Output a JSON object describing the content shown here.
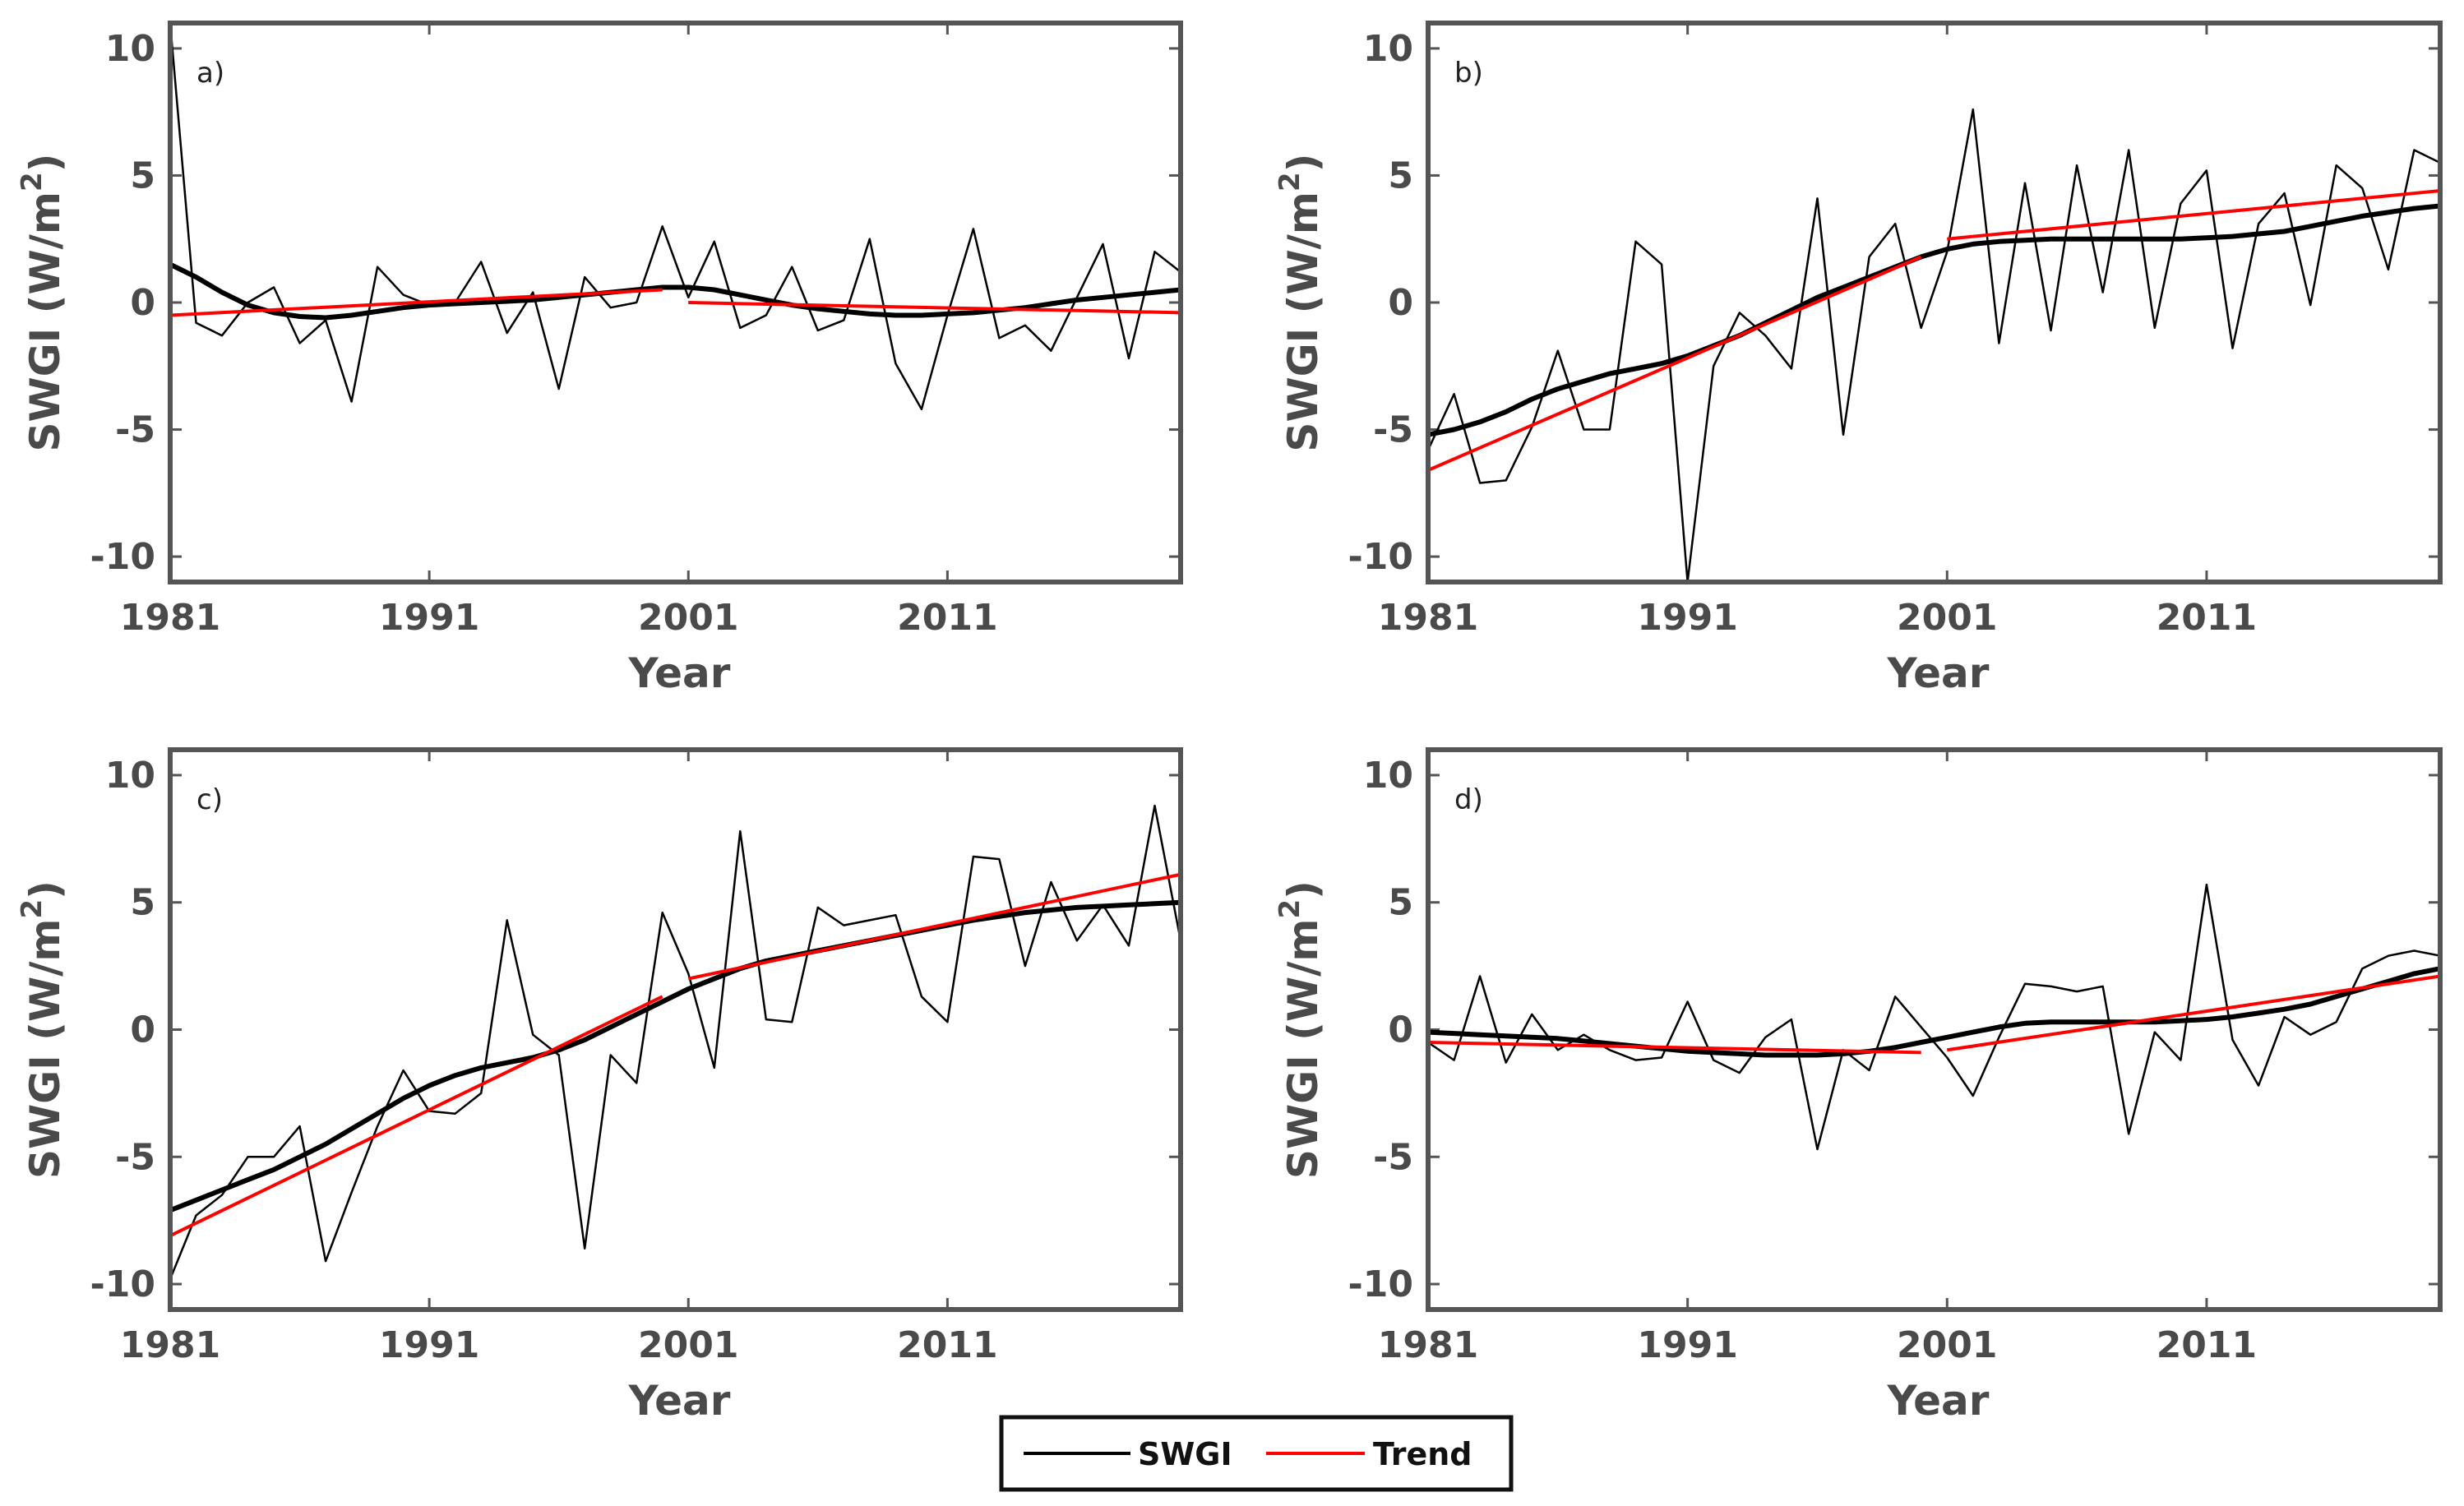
{
  "colors": {
    "swgi": "#000000",
    "trend": "#ff0000",
    "axis": "#4a4a4a",
    "frame": "#555555"
  },
  "legend": {
    "entries": [
      "SWGI",
      "Trend"
    ]
  },
  "chart_data": [
    {
      "type": "line",
      "panel_label": "a)",
      "xlabel": "Year",
      "ylabel": "SWGI (W/m",
      "ylabel_superscript": "2",
      "ylabel_close": ")",
      "xlim": [
        1981,
        2020
      ],
      "ylim": [
        -11,
        11
      ],
      "xticks": [
        "1981",
        "1991",
        "2001",
        "2011"
      ],
      "yticks": [
        "10",
        "5",
        "0",
        "-5",
        "-10"
      ],
      "x": [
        1981,
        1982,
        1983,
        1984,
        1985,
        1986,
        1987,
        1988,
        1989,
        1990,
        1991,
        1992,
        1993,
        1994,
        1995,
        1996,
        1997,
        1998,
        1999,
        2000,
        2001,
        2002,
        2003,
        2004,
        2005,
        2006,
        2007,
        2008,
        2009,
        2010,
        2011,
        2012,
        2013,
        2014,
        2015,
        2016,
        2017,
        2018,
        2019,
        2020
      ],
      "series": [
        {
          "name": "SWGI",
          "kind": "raw",
          "values": [
            11,
            -0.8,
            -1.3,
            0,
            0.6,
            -1.6,
            -0.7,
            -3.9,
            1.4,
            0.3,
            -0.1,
            0,
            1.6,
            -1.2,
            0.4,
            -3.4,
            1,
            -0.2,
            0,
            3,
            0.2,
            2.4,
            -1,
            -0.5,
            1.4,
            -1.1,
            -0.7,
            2.5,
            -2.4,
            -4.2,
            -0.5,
            2.9,
            -1.4,
            -0.9,
            -1.9,
            0.2,
            2.3,
            -2.2,
            2,
            1.2
          ]
        },
        {
          "name": "SWGI smoothed",
          "kind": "smooth",
          "values": [
            1.5,
            1,
            0.4,
            -0.1,
            -0.4,
            -0.55,
            -0.6,
            -0.5,
            -0.35,
            -0.2,
            -0.1,
            -0.05,
            0,
            0.05,
            0.1,
            0.2,
            0.3,
            0.4,
            0.5,
            0.6,
            0.6,
            0.5,
            0.3,
            0.1,
            -0.1,
            -0.25,
            -0.35,
            -0.45,
            -0.5,
            -0.5,
            -0.45,
            -0.4,
            -0.3,
            -0.2,
            -0.05,
            0.1,
            0.2,
            0.3,
            0.4,
            0.5
          ]
        },
        {
          "name": "Trend",
          "kind": "trend",
          "segments": [
            {
              "x": [
                1981,
                2000
              ],
              "y": [
                -0.5,
                0.5
              ]
            },
            {
              "x": [
                2001,
                2020
              ],
              "y": [
                0,
                -0.4
              ]
            }
          ]
        }
      ]
    },
    {
      "type": "line",
      "panel_label": "b)",
      "xlabel": "Year",
      "ylabel": "SWGI (W/m",
      "ylabel_superscript": "2",
      "ylabel_close": ")",
      "xlim": [
        1981,
        2020
      ],
      "ylim": [
        -11,
        11
      ],
      "xticks": [
        "1981",
        "1991",
        "2001",
        "2011"
      ],
      "yticks": [
        "10",
        "5",
        "0",
        "-5",
        "-10"
      ],
      "x": [
        1981,
        1982,
        1983,
        1984,
        1985,
        1986,
        1987,
        1988,
        1989,
        1990,
        1991,
        1992,
        1993,
        1994,
        1995,
        1996,
        1997,
        1998,
        1999,
        2000,
        2001,
        2002,
        2003,
        2004,
        2005,
        2006,
        2007,
        2008,
        2009,
        2010,
        2011,
        2012,
        2013,
        2014,
        2015,
        2016,
        2017,
        2018,
        2019,
        2020
      ],
      "series": [
        {
          "name": "SWGI",
          "kind": "raw",
          "values": [
            -5.8,
            -3.6,
            -7.1,
            -7,
            -4.9,
            -1.9,
            -5,
            -5,
            2.4,
            1.5,
            -11,
            -2.5,
            -0.4,
            -1.3,
            -2.6,
            4.1,
            -5.2,
            1.8,
            3.1,
            -1,
            2,
            7.6,
            -1.6,
            4.7,
            -1.1,
            5.4,
            0.4,
            6,
            -1,
            3.9,
            5.2,
            -1.8,
            3.1,
            4.3,
            -0.1,
            5.4,
            4.5,
            1.3,
            6,
            5.5
          ]
        },
        {
          "name": "SWGI smoothed",
          "kind": "smooth",
          "values": [
            -5.2,
            -5,
            -4.7,
            -4.3,
            -3.8,
            -3.4,
            -3.1,
            -2.8,
            -2.6,
            -2.4,
            -2.1,
            -1.7,
            -1.3,
            -0.8,
            -0.3,
            0.2,
            0.6,
            1,
            1.4,
            1.8,
            2.1,
            2.3,
            2.4,
            2.45,
            2.5,
            2.5,
            2.5,
            2.5,
            2.5,
            2.5,
            2.55,
            2.6,
            2.7,
            2.8,
            3,
            3.2,
            3.4,
            3.55,
            3.7,
            3.8
          ]
        },
        {
          "name": "Trend",
          "kind": "trend",
          "segments": [
            {
              "x": [
                1981,
                2000
              ],
              "y": [
                -6.6,
                1.8
              ]
            },
            {
              "x": [
                2001,
                2020
              ],
              "y": [
                2.5,
                4.4
              ]
            }
          ]
        }
      ]
    },
    {
      "type": "line",
      "panel_label": "c)",
      "xlabel": "Year",
      "ylabel": "SWGI (W/m",
      "ylabel_superscript": "2",
      "ylabel_close": ")",
      "xlim": [
        1981,
        2020
      ],
      "ylim": [
        -11,
        11
      ],
      "xticks": [
        "1981",
        "1991",
        "2001",
        "2011"
      ],
      "yticks": [
        "10",
        "5",
        "0",
        "-5",
        "-10"
      ],
      "x": [
        1981,
        1982,
        1983,
        1984,
        1985,
        1986,
        1987,
        1988,
        1989,
        1990,
        1991,
        1992,
        1993,
        1994,
        1995,
        1996,
        1997,
        1998,
        1999,
        2000,
        2001,
        2002,
        2003,
        2004,
        2005,
        2006,
        2007,
        2008,
        2009,
        2010,
        2011,
        2012,
        2013,
        2014,
        2015,
        2016,
        2017,
        2018,
        2019,
        2020
      ],
      "series": [
        {
          "name": "SWGI",
          "kind": "raw",
          "values": [
            -9.8,
            -7.3,
            -6.5,
            -5,
            -5,
            -3.8,
            -9.1,
            -6.4,
            -3.8,
            -1.6,
            -3.2,
            -3.3,
            -2.5,
            4.3,
            -0.2,
            -1,
            -8.6,
            -1,
            -2.1,
            4.6,
            2.2,
            -1.5,
            7.8,
            0.4,
            0.3,
            4.8,
            4.1,
            4.3,
            4.5,
            1.3,
            0.3,
            6.8,
            6.7,
            2.5,
            5.8,
            3.5,
            4.9,
            3.3,
            8.8,
            3.5
          ]
        },
        {
          "name": "SWGI smoothed",
          "kind": "smooth",
          "values": [
            -7.1,
            -6.7,
            -6.3,
            -5.9,
            -5.5,
            -5,
            -4.5,
            -3.9,
            -3.3,
            -2.7,
            -2.2,
            -1.8,
            -1.5,
            -1.3,
            -1.1,
            -0.8,
            -0.4,
            0.1,
            0.6,
            1.1,
            1.6,
            2,
            2.4,
            2.7,
            2.9,
            3.1,
            3.3,
            3.5,
            3.7,
            3.9,
            4.1,
            4.3,
            4.45,
            4.6,
            4.7,
            4.8,
            4.85,
            4.9,
            4.95,
            5
          ]
        },
        {
          "name": "Trend",
          "kind": "trend",
          "segments": [
            {
              "x": [
                1981,
                2000
              ],
              "y": [
                -8.1,
                1.3
              ]
            },
            {
              "x": [
                2001,
                2020
              ],
              "y": [
                2,
                6.1
              ]
            }
          ]
        }
      ]
    },
    {
      "type": "line",
      "panel_label": "d)",
      "xlabel": "Year",
      "ylabel": "SWGI (W/m",
      "ylabel_superscript": "2",
      "ylabel_close": ")",
      "xlim": [
        1981,
        2020
      ],
      "ylim": [
        -11,
        11
      ],
      "xticks": [
        "1981",
        "1991",
        "2001",
        "2011"
      ],
      "yticks": [
        "10",
        "5",
        "0",
        "-5",
        "-10"
      ],
      "x": [
        1981,
        1982,
        1983,
        1984,
        1985,
        1986,
        1987,
        1988,
        1989,
        1990,
        1991,
        1992,
        1993,
        1994,
        1995,
        1996,
        1997,
        1998,
        1999,
        2000,
        2001,
        2002,
        2003,
        2004,
        2005,
        2006,
        2007,
        2008,
        2009,
        2010,
        2011,
        2012,
        2013,
        2014,
        2015,
        2016,
        2017,
        2018,
        2019,
        2020
      ],
      "series": [
        {
          "name": "SWGI",
          "kind": "raw",
          "values": [
            -0.5,
            -1.2,
            2.1,
            -1.3,
            0.6,
            -0.8,
            -0.2,
            -0.8,
            -1.2,
            -1.1,
            1.1,
            -1.2,
            -1.7,
            -0.3,
            0.4,
            -4.7,
            -0.8,
            -1.6,
            1.3,
            0.1,
            -1.1,
            -2.6,
            -0.3,
            1.8,
            1.7,
            1.5,
            1.7,
            -4.1,
            -0.1,
            -1.2,
            5.7,
            -0.4,
            -2.2,
            0.5,
            -0.2,
            0.3,
            2.4,
            2.9,
            3.1,
            2.9
          ]
        },
        {
          "name": "SWGI smoothed",
          "kind": "smooth",
          "values": [
            -0.1,
            -0.15,
            -0.2,
            -0.25,
            -0.3,
            -0.35,
            -0.45,
            -0.55,
            -0.65,
            -0.75,
            -0.85,
            -0.9,
            -0.95,
            -1,
            -1,
            -1,
            -0.95,
            -0.85,
            -0.7,
            -0.5,
            -0.3,
            -0.1,
            0.1,
            0.25,
            0.3,
            0.3,
            0.3,
            0.3,
            0.3,
            0.35,
            0.4,
            0.5,
            0.65,
            0.8,
            1,
            1.3,
            1.6,
            1.9,
            2.2,
            2.4
          ]
        },
        {
          "name": "Trend",
          "kind": "trend",
          "segments": [
            {
              "x": [
                1981,
                2000
              ],
              "y": [
                -0.5,
                -0.9
              ]
            },
            {
              "x": [
                2001,
                2020
              ],
              "y": [
                -0.8,
                2.1
              ]
            }
          ]
        }
      ]
    }
  ]
}
